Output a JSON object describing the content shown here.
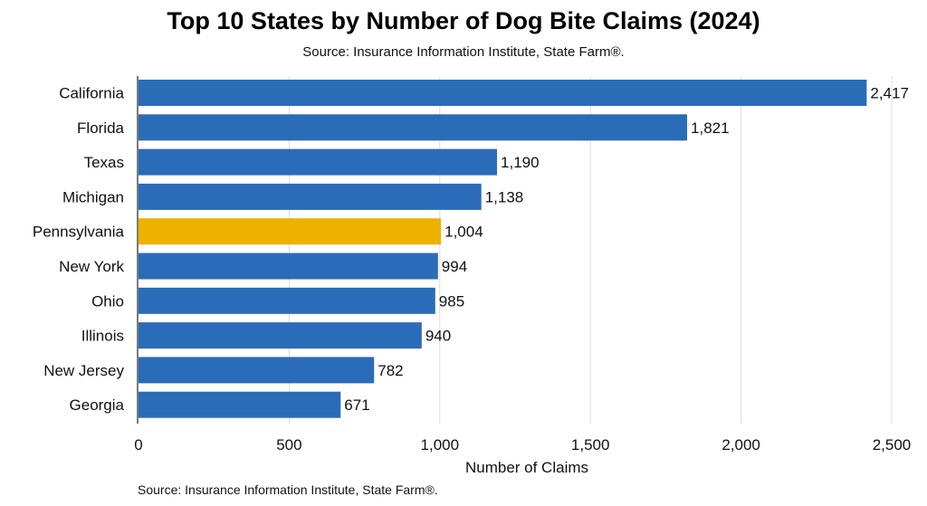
{
  "chart_data": {
    "type": "bar",
    "orientation": "horizontal",
    "title": "Top 10 States by Number of Dog Bite Claims (2024)",
    "subtitle": "Source: Insurance Information Institute, State Farm®.",
    "footer": "Source: Insurance Information Institute, State Farm®.",
    "xlabel": "Number of Claims",
    "ylabel": "",
    "xlim": [
      0,
      2500
    ],
    "xticks": [
      0,
      500,
      1000,
      1500,
      2000,
      2500
    ],
    "xtick_labels": [
      "0",
      "500",
      "1,000",
      "1,500",
      "2,000",
      "2,500"
    ],
    "grid": "vertical",
    "categories": [
      "California",
      "Florida",
      "Texas",
      "Michigan",
      "Pennsylvania",
      "New York",
      "Ohio",
      "Illinois",
      "New Jersey",
      "Georgia"
    ],
    "values": [
      2417,
      1821,
      1190,
      1138,
      1004,
      994,
      985,
      940,
      782,
      671
    ],
    "value_labels": [
      "2,417",
      "1,821",
      "1,190",
      "1,138",
      "1,004",
      "994",
      "985",
      "940",
      "782",
      "671"
    ],
    "highlight": "Pennsylvania",
    "colors": {
      "bar": "#2b6cb8",
      "highlight": "#eeb100",
      "grid": "#dddddd",
      "axis": "#222222"
    }
  }
}
